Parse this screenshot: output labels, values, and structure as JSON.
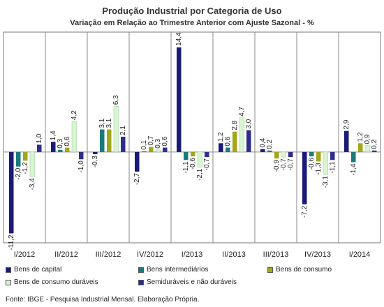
{
  "chart_data": {
    "type": "bar",
    "title": "Produção Industrial por Categoria de Uso",
    "subtitle": "Variação em Relação ao Trimestre Anterior com Ajuste Sazonal - %",
    "categories": [
      "I/2012",
      "II/2012",
      "III/2012",
      "IV/2012",
      "I/2013",
      "II/2013",
      "III/2013",
      "IV/2013",
      "I/2014"
    ],
    "series": [
      {
        "name": "Bens de capital",
        "color": "#1a1a78",
        "values": [
          -11.2,
          1.4,
          -0.3,
          -2.7,
          14.4,
          1.2,
          0.4,
          -7.2,
          2.9
        ]
      },
      {
        "name": "Bens intermediários",
        "color": "#1a7a7a",
        "values": [
          -2.0,
          0.3,
          3.1,
          0.1,
          -1.1,
          0.6,
          0.2,
          -0.6,
          -1.4
        ]
      },
      {
        "name": "Bens de consumo",
        "color": "#a0a81a",
        "values": [
          -1.2,
          0.6,
          3.1,
          0.7,
          -0.6,
          2.8,
          -0.9,
          -1.3,
          1.2
        ]
      },
      {
        "name": "Bens de consumo duráveis",
        "color": "#d7f5d0",
        "values": [
          -3.4,
          4.2,
          6.3,
          0.3,
          -2.1,
          4.7,
          -0.7,
          -3.1,
          0.9
        ]
      },
      {
        "name": "Semiduráveis e não duráveis",
        "color": "#2e2e8a",
        "values": [
          1.0,
          -1.0,
          2.1,
          0.6,
          -0.7,
          3.0,
          -0.7,
          -1.1,
          0.2
        ]
      }
    ],
    "value_labels": [
      [
        "-11,2",
        "-2,0",
        "-1,2",
        "-3,4",
        "1,0"
      ],
      [
        "1,4",
        "0,3",
        "0,6",
        "4,2",
        "-1,0"
      ],
      [
        "-0,3",
        "3,1",
        "3,1",
        "6,3",
        "2,1"
      ],
      [
        "-2,7",
        "0,1",
        "0,7",
        "0,3",
        "0,6"
      ],
      [
        "14,4",
        "-1,1",
        "-0,6",
        "-2,1",
        "-0,7"
      ],
      [
        "1,2",
        "0,6",
        "2,8",
        "4,7",
        "3,0"
      ],
      [
        "0,4",
        "0,2",
        "-0,9",
        "-0,7",
        "-0,7"
      ],
      [
        "-7,2",
        "-0,6",
        "-1,3",
        "-3,1",
        "-1,1"
      ],
      [
        "2,9",
        "-1,4",
        "1,2",
        "0,9",
        "0,2"
      ]
    ],
    "ylim": [
      -12.5,
      16.5
    ],
    "grid": "vertical-separators",
    "legend_position": "bottom"
  },
  "footer": {
    "source": "Fonte: IBGE - Pesquisa Industrial Mensal. Elaboração Própria."
  }
}
